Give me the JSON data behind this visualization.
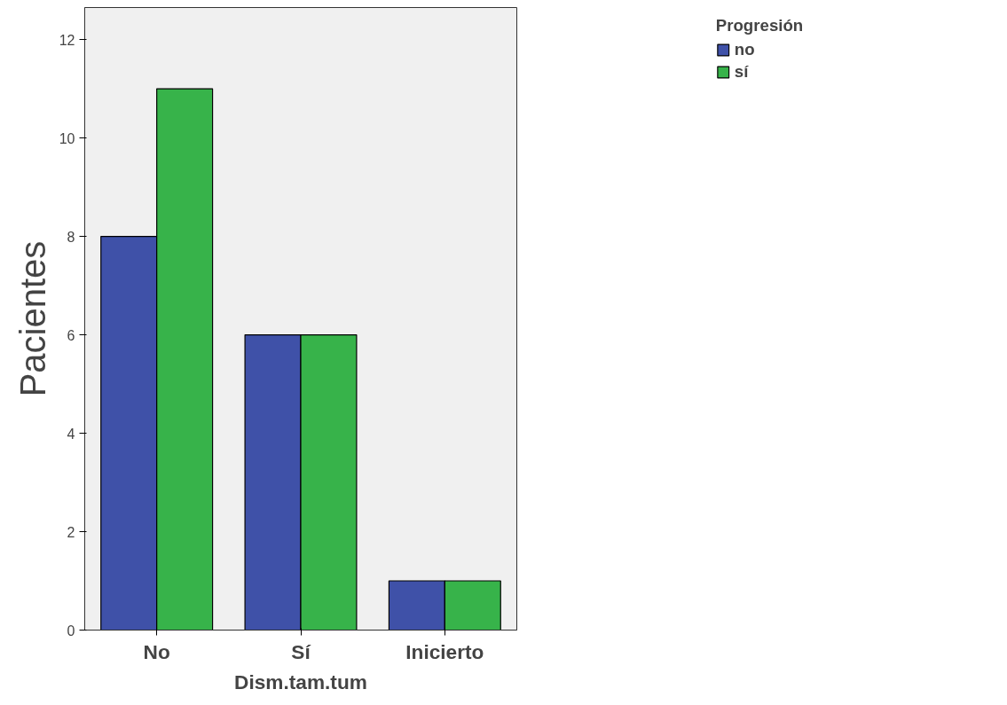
{
  "chart_data": {
    "type": "bar",
    "xlabel": "Dism.tam.tum",
    "ylabel": "Pacientes",
    "legend_title": "Progresión",
    "categories": [
      "No",
      "Sí",
      "Inicierto"
    ],
    "series": [
      {
        "name": "no",
        "color": "#3f51a8",
        "values": [
          8,
          6,
          1
        ]
      },
      {
        "name": "sí",
        "color": "#37b34a",
        "values": [
          11,
          6,
          1
        ]
      }
    ],
    "ylim": [
      0,
      12.65
    ],
    "yticks": [
      0,
      2,
      4,
      6,
      8,
      10,
      12
    ],
    "grid": false,
    "legend": "top right"
  }
}
